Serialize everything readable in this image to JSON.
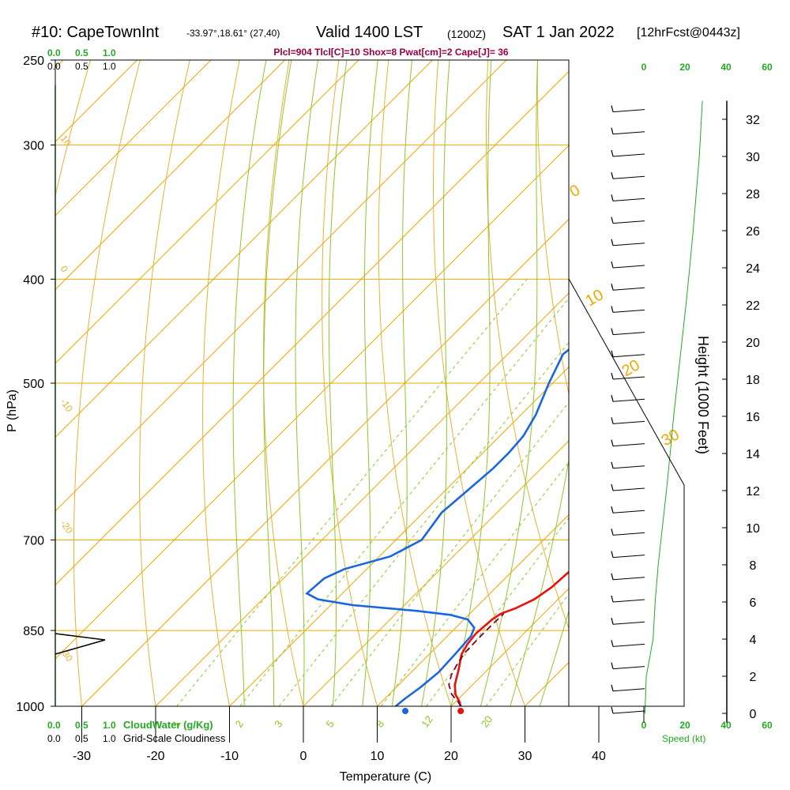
{
  "header": {
    "station": "#10: CapeTownInt",
    "coords": "-33.97°,18.61° (27,40)",
    "valid": "Valid 1400 LST",
    "z": "(1200Z)",
    "date": "SAT 1 Jan 2022",
    "fcst": "[12hrFcst@0443z]"
  },
  "indices_line": "Plcl=904 Tlcl[C]=10 Shox=8 Pwat[cm]=2 Cape[J]= 36",
  "colors": {
    "temperature": "#e8120c",
    "dewpoint": "#1a66e0",
    "parcel": "#7a0030",
    "isotherm": "#f0a800",
    "dry_adiabat": "#e8b030",
    "moist_adiabat": "#8cc828",
    "mixing_ratio": "#8cc828",
    "cloud_scale": "#22aa22",
    "indices": "#990044"
  },
  "chart_data": {
    "type": "line",
    "title": "",
    "xlabel": "Temperature (C)",
    "ylabel": "P (hPa)",
    "y2label": "Height (1000 Feet)",
    "x_ticks": [
      "-30",
      "-20",
      "-10",
      "0",
      "10",
      "20",
      "30",
      "40"
    ],
    "p_ticks": [
      "250",
      "300",
      "400",
      "500",
      "700",
      "850",
      "1000"
    ],
    "height_ticks": [
      "0",
      "2",
      "4",
      "6",
      "8",
      "10",
      "12",
      "14",
      "16",
      "18",
      "20",
      "22",
      "24",
      "26",
      "28",
      "30",
      "32"
    ],
    "cloud_top_scale": [
      "0.0",
      "0.5",
      "1.0"
    ],
    "cloud_top_scale_black": [
      "0.0",
      "0.5",
      "1.0"
    ],
    "cloud_bottom_green": [
      "0.0",
      "0.5",
      "1.0"
    ],
    "cloud_bottom_green_label": "CloudWater (g/Kg)",
    "cloud_bottom_black": [
      "0.0",
      "0.5",
      "1.0"
    ],
    "cloud_bottom_black_label": "Grid-Scale Cloudiness",
    "speed_label": "Speed (kt)",
    "speed_ticks": [
      "0",
      "20",
      "40",
      "60"
    ],
    "speed_ticks_top": [
      "0",
      "20",
      "40",
      "60"
    ],
    "mixing_ratio_labels": [
      "1",
      "2",
      "3",
      "5",
      "8",
      "12",
      "20"
    ],
    "dry_adiabat_labels": [
      "10",
      "0",
      "-10",
      "-20",
      "-30"
    ],
    "moist_adiabat_labels": [
      "0",
      "10",
      "20",
      "30"
    ],
    "series": [
      {
        "name": "Temperature",
        "points": [
          [
            21.3,
            1000
          ],
          [
            20.5,
            990
          ],
          [
            19.0,
            975
          ],
          [
            17.6,
            955
          ],
          [
            16.1,
            925
          ],
          [
            14.4,
            895
          ],
          [
            13.8,
            875
          ],
          [
            13.5,
            855
          ],
          [
            13.8,
            830
          ],
          [
            14.2,
            820
          ],
          [
            15.5,
            810
          ],
          [
            16.8,
            795
          ],
          [
            17.5,
            775
          ],
          [
            17.8,
            745
          ],
          [
            17.6,
            700
          ],
          [
            17.0,
            645
          ],
          [
            15.8,
            590
          ],
          [
            14.5,
            540
          ],
          [
            13.0,
            500
          ],
          [
            10.5,
            460
          ],
          [
            7.0,
            420
          ],
          [
            2.0,
            380
          ],
          [
            -3.0,
            340
          ],
          [
            -7.5,
            300
          ],
          [
            -11.5,
            270
          ]
        ]
      },
      {
        "name": "Dewpoint",
        "points": [
          [
            13.8,
            1003
          ],
          [
            12.5,
            1000
          ],
          [
            12.7,
            985
          ],
          [
            13.3,
            960
          ],
          [
            13.7,
            930
          ],
          [
            13.5,
            895
          ],
          [
            13.2,
            860
          ],
          [
            12.5,
            845
          ],
          [
            10.5,
            830
          ],
          [
            7.5,
            822
          ],
          [
            2.5,
            815
          ],
          [
            -7.0,
            805
          ],
          [
            -12.5,
            795
          ],
          [
            -14.8,
            785
          ],
          [
            -14.5,
            760
          ],
          [
            -13.0,
            745
          ],
          [
            -8.5,
            725
          ],
          [
            -6.5,
            700
          ],
          [
            -7.5,
            660
          ],
          [
            -7.0,
            630
          ],
          [
            -6.5,
            600
          ],
          [
            -6.5,
            580
          ],
          [
            -6.8,
            560
          ],
          [
            -8.0,
            535
          ],
          [
            -10.5,
            500
          ],
          [
            -12.5,
            470
          ],
          [
            -11.8,
            450
          ],
          [
            -11.5,
            400
          ],
          [
            -12.0,
            360
          ],
          [
            -13.5,
            330
          ],
          [
            -14.5,
            300
          ],
          [
            -14.8,
            270
          ],
          [
            -14.8,
            260
          ]
        ]
      },
      {
        "name": "Parcel",
        "points": [
          [
            21.3,
            1000
          ],
          [
            20.3,
            990
          ],
          [
            18.5,
            975
          ],
          [
            16.8,
            955
          ],
          [
            15.8,
            935
          ],
          [
            15.0,
            910
          ],
          [
            14.6,
            890
          ],
          [
            14.5,
            860
          ],
          [
            14.5,
            840
          ],
          [
            14.6,
            820
          ]
        ]
      }
    ],
    "surface": {
      "temperature": 21.3,
      "dewpoint": 13.8
    },
    "height_profile_1000ft": [
      [
        0,
        0.5
      ],
      [
        2,
        1.2
      ],
      [
        4,
        4.5
      ],
      [
        6,
        5.5
      ],
      [
        8,
        7.0
      ],
      [
        10,
        9.0
      ],
      [
        12,
        11.0
      ],
      [
        14,
        12.8
      ],
      [
        16,
        14.5
      ],
      [
        18,
        16.5
      ],
      [
        20,
        18.5
      ],
      [
        22,
        20.5
      ],
      [
        24,
        22.3
      ],
      [
        26,
        24.0
      ],
      [
        28,
        25.5
      ],
      [
        30,
        27.0
      ],
      [
        32,
        28.0
      ],
      [
        33,
        28.5
      ]
    ],
    "ylim_p": [
      250,
      1000
    ],
    "xlim": [
      -35,
      45
    ]
  }
}
